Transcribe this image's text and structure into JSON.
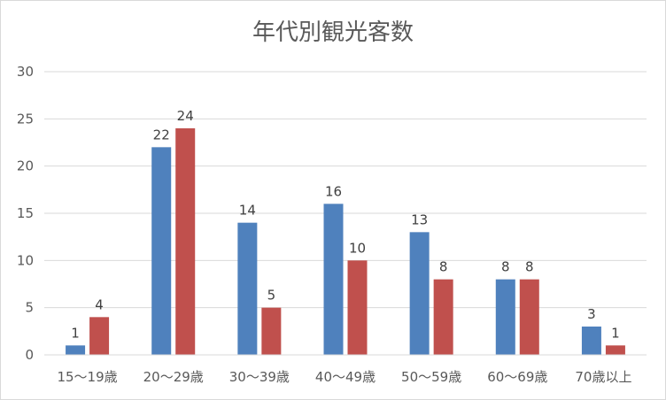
{
  "chart_data": {
    "type": "bar",
    "title": "年代別観光客数",
    "categories": [
      "15〜19歳",
      "20〜29歳",
      "30〜39歳",
      "40〜49歳",
      "50〜59歳",
      "60〜69歳",
      "70歳以上"
    ],
    "series": [
      {
        "values": [
          1,
          22,
          14,
          16,
          13,
          8,
          3
        ],
        "color": "#4f81bd"
      },
      {
        "values": [
          4,
          24,
          5,
          10,
          8,
          8,
          1
        ],
        "color": "#c0504d"
      }
    ],
    "ylim": [
      0,
      30
    ],
    "yticks": [
      0,
      5,
      10,
      15,
      20,
      25,
      30
    ],
    "grid": true,
    "legend": "none",
    "data_labels": true
  }
}
